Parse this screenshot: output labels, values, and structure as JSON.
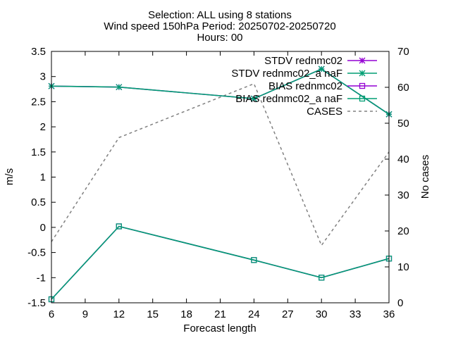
{
  "chart_data": {
    "type": "line",
    "title_lines": [
      "Selection: ALL using     8 stations",
      "Wind speed 150hPa   Period: 20250702-20250720",
      "Hours: 00"
    ],
    "xlabel": "Forecast length",
    "ylabel": "m/s",
    "y2label": "No cases",
    "xlim": [
      6,
      36
    ],
    "ylim": [
      -1.5,
      3.5
    ],
    "y2lim": [
      0,
      70
    ],
    "xticks": [
      "6",
      "9",
      "12",
      "15",
      "18",
      "21",
      "24",
      "27",
      "30",
      "33",
      "36"
    ],
    "yticks": [
      "-1.5",
      "-1",
      "-0.5",
      "0",
      "0.5",
      "1",
      "1.5",
      "2",
      "2.5",
      "3",
      "3.5"
    ],
    "y2ticks": [
      "0",
      "10",
      "20",
      "30",
      "40",
      "50",
      "60",
      "70"
    ],
    "x": [
      6,
      12,
      24,
      30,
      36
    ],
    "series": [
      {
        "name": "STDV rednmc02",
        "axis": "y",
        "marker": "star",
        "color": "#9400d3",
        "values": [
          2.81,
          2.79,
          2.56,
          3.15,
          2.25
        ]
      },
      {
        "name": "STDV rednmc02_a naF",
        "axis": "y",
        "marker": "star",
        "color": "#009e73",
        "values": [
          2.81,
          2.79,
          2.56,
          3.15,
          2.25
        ]
      },
      {
        "name": "BIAS rednmc02",
        "axis": "y",
        "marker": "square",
        "color": "#9400d3",
        "values": [
          -1.43,
          0.02,
          -0.65,
          -1.0,
          -0.62
        ]
      },
      {
        "name": "BIAS rednmc02_a naF",
        "axis": "y",
        "marker": "square",
        "color": "#009e73",
        "values": [
          -1.43,
          0.02,
          -0.65,
          -1.0,
          -0.62
        ]
      },
      {
        "name": "CASES",
        "axis": "y2",
        "marker": "none",
        "color": "#808080",
        "dashed": true,
        "values": [
          17,
          46,
          61,
          16,
          42
        ]
      }
    ],
    "legend_entries": [
      "STDV rednmc02",
      "STDV rednmc02_a naF",
      "BIAS rednmc02",
      "BIAS rednmc02_a naF",
      "CASES"
    ],
    "grid": false,
    "legend_position": "top-right"
  }
}
